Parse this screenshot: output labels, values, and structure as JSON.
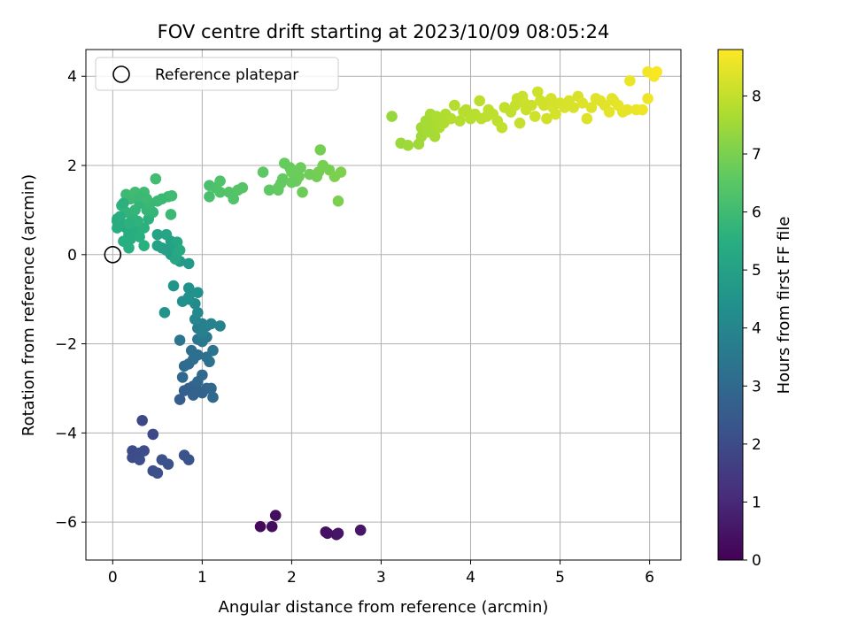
{
  "chart_data": {
    "type": "scatter",
    "title": "FOV centre drift starting at 2023/10/09 08:05:24",
    "xlabel": "Angular distance from reference (arcmin)",
    "ylabel": "Rotation from reference (arcmin)",
    "xlim": [
      -0.3,
      6.35
    ],
    "ylim": [
      -6.85,
      4.6
    ],
    "xticks": [
      "0",
      "1",
      "2",
      "3",
      "4",
      "5",
      "6"
    ],
    "yticks": [
      "−6",
      "−4",
      "−2",
      "0",
      "2",
      "4"
    ],
    "grid": true,
    "legend": {
      "position": "top-left",
      "label": "Reference platepar"
    },
    "reference_point": {
      "x": 0,
      "y": 0
    },
    "colorbar": {
      "label": "Hours from first FF file",
      "range": [
        0,
        8.8
      ],
      "ticks": [
        "0",
        "1",
        "2",
        "3",
        "4",
        "5",
        "6",
        "7",
        "8"
      ],
      "colormap": "viridis"
    },
    "points": [
      [
        1.65,
        -6.1,
        0.2
      ],
      [
        1.78,
        -6.1,
        0.3
      ],
      [
        1.82,
        -5.85,
        0.35
      ],
      [
        2.38,
        -6.22,
        0.4
      ],
      [
        2.4,
        -6.25,
        0.42
      ],
      [
        2.5,
        -6.28,
        0.45
      ],
      [
        2.52,
        -6.25,
        0.5
      ],
      [
        2.77,
        -6.18,
        0.55
      ],
      [
        0.33,
        -3.72,
        1.9
      ],
      [
        0.45,
        -4.03,
        1.95
      ],
      [
        0.22,
        -4.4,
        2.0
      ],
      [
        0.22,
        -4.55,
        2.0
      ],
      [
        0.3,
        -4.45,
        2.05
      ],
      [
        0.35,
        -4.4,
        2.05
      ],
      [
        0.3,
        -4.6,
        2.1
      ],
      [
        0.45,
        -4.85,
        2.1
      ],
      [
        0.5,
        -4.9,
        2.15
      ],
      [
        0.55,
        -4.6,
        2.15
      ],
      [
        0.62,
        -4.7,
        2.2
      ],
      [
        0.8,
        -4.5,
        2.2
      ],
      [
        0.85,
        -4.6,
        2.25
      ],
      [
        0.75,
        -3.25,
        2.6
      ],
      [
        0.8,
        -3.05,
        2.65
      ],
      [
        0.85,
        -3.0,
        2.7
      ],
      [
        0.9,
        -2.95,
        2.75
      ],
      [
        0.95,
        -3.05,
        2.7
      ],
      [
        1.0,
        -3.1,
        2.8
      ],
      [
        1.05,
        -3.0,
        2.85
      ],
      [
        1.1,
        -3.0,
        2.9
      ],
      [
        1.12,
        -3.2,
        2.95
      ],
      [
        0.9,
        -3.15,
        2.8
      ],
      [
        0.95,
        -2.85,
        2.9
      ],
      [
        1.0,
        -2.7,
        3.0
      ],
      [
        0.78,
        -2.75,
        3.0
      ],
      [
        0.8,
        -2.5,
        3.05
      ],
      [
        0.85,
        -2.45,
        3.1
      ],
      [
        0.9,
        -2.35,
        3.15
      ],
      [
        0.95,
        -2.25,
        3.2
      ],
      [
        0.88,
        -2.15,
        3.2
      ],
      [
        1.05,
        -2.3,
        3.25
      ],
      [
        1.08,
        -2.4,
        3.3
      ],
      [
        1.12,
        -2.15,
        3.35
      ],
      [
        0.75,
        -1.92,
        3.4
      ],
      [
        0.95,
        -1.9,
        3.45
      ],
      [
        1.0,
        -1.95,
        3.5
      ],
      [
        1.05,
        -1.85,
        3.55
      ],
      [
        0.95,
        -1.65,
        3.7
      ],
      [
        1.0,
        -1.55,
        3.75
      ],
      [
        1.05,
        -1.6,
        3.8
      ],
      [
        1.1,
        -1.55,
        3.85
      ],
      [
        1.2,
        -1.6,
        3.9
      ],
      [
        1.0,
        -1.75,
        3.8
      ],
      [
        0.92,
        -1.45,
        4.0
      ],
      [
        0.95,
        -1.3,
        4.1
      ],
      [
        0.92,
        -1.1,
        4.2
      ],
      [
        0.85,
        -1.0,
        4.3
      ],
      [
        0.78,
        -1.05,
        4.35
      ],
      [
        0.85,
        -0.95,
        4.4
      ],
      [
        0.95,
        -0.85,
        4.4
      ],
      [
        0.85,
        -0.75,
        4.45
      ],
      [
        0.58,
        -1.3,
        4.5
      ],
      [
        0.68,
        -0.7,
        4.55
      ],
      [
        0.85,
        -0.2,
        4.7
      ],
      [
        0.75,
        -0.15,
        4.75
      ],
      [
        0.7,
        -0.05,
        4.8
      ],
      [
        0.65,
        0.0,
        4.85
      ],
      [
        0.6,
        0.1,
        4.9
      ],
      [
        0.55,
        0.15,
        4.95
      ],
      [
        0.5,
        0.2,
        5.0
      ],
      [
        0.7,
        0.15,
        5.0
      ],
      [
        0.65,
        0.3,
        5.05
      ],
      [
        0.5,
        0.45,
        5.1
      ],
      [
        0.6,
        0.45,
        5.15
      ],
      [
        0.72,
        0.28,
        5.2
      ],
      [
        0.7,
        -0.1,
        5.2
      ],
      [
        0.72,
        0.05,
        5.25
      ],
      [
        0.75,
        0.1,
        5.3
      ],
      [
        0.1,
        0.7,
        5.3
      ],
      [
        0.15,
        0.6,
        5.35
      ],
      [
        0.05,
        0.8,
        5.35
      ],
      [
        0.2,
        0.5,
        5.4
      ],
      [
        0.18,
        0.45,
        5.4
      ],
      [
        0.25,
        0.55,
        5.45
      ],
      [
        0.2,
        0.35,
        5.45
      ],
      [
        0.12,
        0.3,
        5.5
      ],
      [
        0.18,
        0.15,
        5.5
      ],
      [
        0.35,
        0.2,
        5.55
      ],
      [
        0.3,
        0.4,
        5.55
      ],
      [
        0.35,
        0.6,
        5.6
      ],
      [
        0.4,
        0.8,
        5.6
      ],
      [
        0.28,
        0.75,
        5.65
      ],
      [
        0.22,
        0.85,
        5.65
      ],
      [
        0.15,
        0.95,
        5.7
      ],
      [
        0.1,
        1.1,
        5.7
      ],
      [
        0.25,
        1.0,
        5.75
      ],
      [
        0.3,
        1.15,
        5.75
      ],
      [
        0.38,
        1.0,
        5.8
      ],
      [
        0.45,
        0.95,
        5.8
      ],
      [
        0.42,
        1.15,
        5.85
      ],
      [
        0.5,
        1.2,
        5.85
      ],
      [
        0.55,
        1.25,
        5.9
      ],
      [
        0.62,
        1.3,
        5.9
      ],
      [
        0.65,
        0.9,
        5.9
      ],
      [
        0.2,
        1.25,
        5.95
      ],
      [
        0.15,
        1.35,
        5.95
      ],
      [
        0.25,
        1.4,
        6.0
      ],
      [
        0.35,
        1.4,
        6.0
      ],
      [
        0.48,
        1.7,
        6.05
      ],
      [
        0.05,
        0.75,
        5.4
      ],
      [
        0.05,
        0.6,
        5.45
      ],
      [
        0.08,
        0.85,
        5.5
      ],
      [
        0.12,
        1.15,
        5.6
      ],
      [
        0.18,
        0.7,
        5.6
      ],
      [
        0.3,
        1.3,
        5.9
      ],
      [
        0.38,
        1.25,
        5.95
      ],
      [
        0.66,
        1.32,
        6.0
      ],
      [
        1.08,
        1.3,
        6.15
      ],
      [
        1.08,
        1.55,
        6.2
      ],
      [
        1.15,
        1.5,
        6.25
      ],
      [
        1.2,
        1.4,
        6.3
      ],
      [
        1.2,
        1.65,
        6.3
      ],
      [
        1.3,
        1.4,
        6.35
      ],
      [
        1.35,
        1.25,
        6.35
      ],
      [
        1.4,
        1.45,
        6.4
      ],
      [
        1.45,
        1.5,
        6.4
      ],
      [
        1.68,
        1.85,
        6.55
      ],
      [
        1.75,
        1.45,
        6.6
      ],
      [
        1.85,
        1.45,
        6.6
      ],
      [
        1.88,
        1.6,
        6.65
      ],
      [
        1.9,
        1.7,
        6.65
      ],
      [
        1.92,
        2.05,
        6.7
      ],
      [
        1.98,
        1.95,
        6.7
      ],
      [
        2.0,
        1.85,
        6.75
      ],
      [
        2.05,
        1.65,
        6.75
      ],
      [
        2.08,
        1.75,
        6.8
      ],
      [
        2.1,
        1.95,
        6.8
      ],
      [
        2.12,
        1.4,
        6.8
      ],
      [
        2.2,
        1.8,
        6.85
      ],
      [
        2.28,
        1.75,
        6.85
      ],
      [
        2.3,
        1.85,
        6.9
      ],
      [
        2.32,
        2.35,
        6.9
      ],
      [
        2.35,
        2.0,
        6.95
      ],
      [
        2.42,
        1.9,
        6.95
      ],
      [
        2.48,
        1.75,
        7.0
      ],
      [
        2.52,
        1.2,
        7.0
      ],
      [
        2.55,
        1.85,
        7.05
      ],
      [
        1.85,
        1.5,
        6.65
      ],
      [
        2.0,
        1.62,
        6.72
      ],
      [
        3.12,
        3.1,
        7.4
      ],
      [
        3.22,
        2.5,
        7.45
      ],
      [
        3.3,
        2.45,
        7.5
      ],
      [
        3.42,
        2.48,
        7.5
      ],
      [
        3.45,
        2.65,
        7.55
      ],
      [
        3.45,
        2.85,
        7.55
      ],
      [
        3.52,
        2.75,
        7.6
      ],
      [
        3.55,
        2.85,
        7.6
      ],
      [
        3.58,
        2.95,
        7.65
      ],
      [
        3.55,
        3.15,
        7.65
      ],
      [
        3.62,
        3.1,
        7.7
      ],
      [
        3.65,
        2.85,
        7.7
      ],
      [
        3.7,
        2.95,
        7.75
      ],
      [
        3.72,
        3.15,
        7.75
      ],
      [
        3.78,
        3.05,
        7.8
      ],
      [
        3.82,
        3.35,
        7.8
      ],
      [
        3.88,
        3.0,
        7.8
      ],
      [
        3.92,
        3.2,
        7.85
      ],
      [
        4.0,
        3.05,
        7.85
      ],
      [
        4.05,
        3.15,
        7.85
      ],
      [
        4.1,
        3.45,
        7.9
      ],
      [
        4.12,
        3.05,
        7.9
      ],
      [
        4.18,
        3.1,
        7.9
      ],
      [
        4.2,
        3.25,
        7.95
      ],
      [
        4.25,
        3.15,
        7.95
      ],
      [
        4.3,
        3.0,
        7.95
      ],
      [
        4.35,
        2.85,
        8.0
      ],
      [
        4.38,
        3.3,
        8.0
      ],
      [
        4.45,
        3.2,
        8.0
      ],
      [
        4.5,
        3.35,
        8.05
      ],
      [
        4.52,
        3.5,
        8.05
      ],
      [
        4.55,
        2.95,
        8.05
      ],
      [
        4.6,
        3.4,
        8.1
      ],
      [
        4.62,
        3.25,
        8.1
      ],
      [
        4.68,
        3.35,
        8.1
      ],
      [
        4.72,
        3.1,
        8.15
      ],
      [
        4.75,
        3.65,
        8.15
      ],
      [
        4.78,
        3.45,
        8.15
      ],
      [
        4.82,
        3.35,
        8.2
      ],
      [
        4.85,
        3.05,
        8.2
      ],
      [
        4.88,
        3.45,
        8.2
      ],
      [
        4.92,
        3.3,
        8.25
      ],
      [
        4.95,
        3.15,
        8.25
      ],
      [
        5.0,
        3.4,
        8.25
      ],
      [
        5.05,
        3.3,
        8.3
      ],
      [
        5.1,
        3.45,
        8.3
      ],
      [
        5.2,
        3.55,
        8.3
      ],
      [
        5.25,
        3.4,
        8.35
      ],
      [
        5.3,
        3.05,
        8.35
      ],
      [
        5.35,
        3.3,
        8.35
      ],
      [
        5.4,
        3.5,
        8.4
      ],
      [
        5.45,
        3.45,
        8.4
      ],
      [
        5.5,
        3.35,
        8.4
      ],
      [
        5.55,
        3.2,
        8.45
      ],
      [
        5.6,
        3.45,
        8.45
      ],
      [
        5.65,
        3.35,
        8.45
      ],
      [
        5.7,
        3.2,
        8.5
      ],
      [
        5.75,
        3.25,
        8.5
      ],
      [
        5.78,
        3.9,
        8.55
      ],
      [
        5.85,
        3.25,
        8.55
      ],
      [
        5.92,
        3.25,
        8.6
      ],
      [
        5.98,
        3.5,
        8.6
      ],
      [
        5.98,
        4.1,
        8.65
      ],
      [
        6.05,
        4.0,
        8.7
      ],
      [
        6.08,
        4.1,
        8.75
      ],
      [
        3.5,
        3.0,
        7.6
      ],
      [
        3.6,
        2.65,
        7.62
      ],
      [
        3.68,
        3.0,
        7.72
      ],
      [
        3.95,
        3.25,
        7.82
      ],
      [
        4.58,
        3.55,
        8.08
      ],
      [
        4.9,
        3.5,
        8.22
      ],
      [
        5.15,
        3.3,
        8.3
      ],
      [
        5.58,
        3.5,
        8.44
      ]
    ]
  }
}
